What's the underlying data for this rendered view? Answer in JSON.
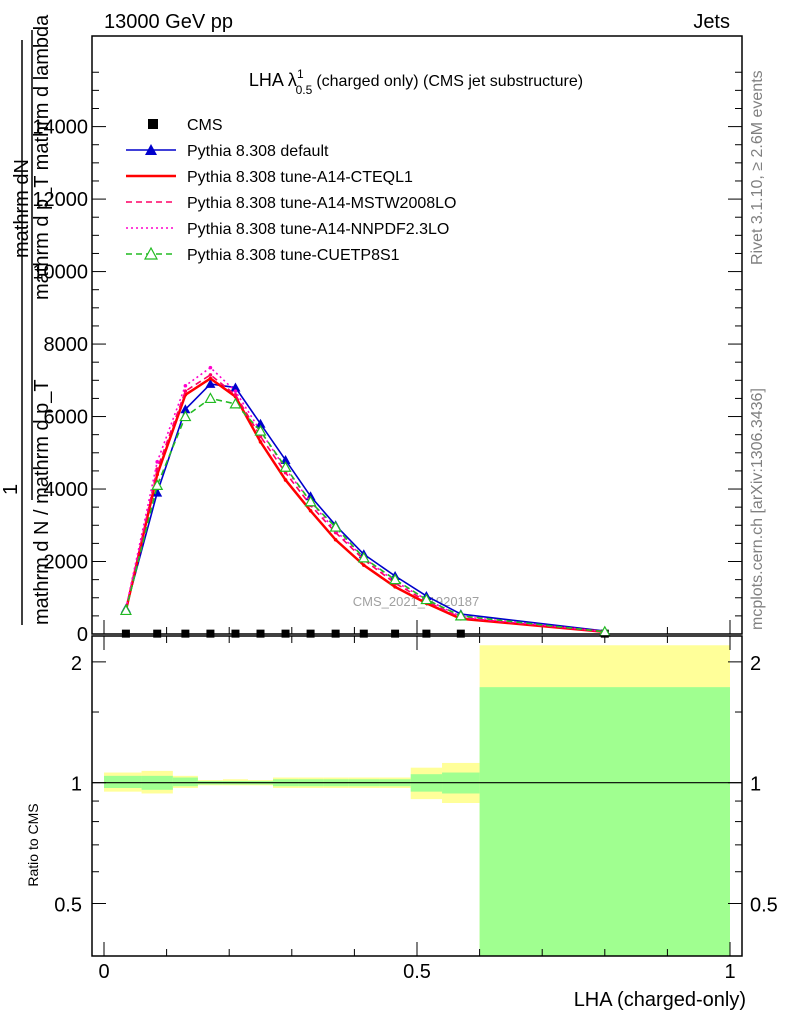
{
  "header": {
    "left": "13000 GeV pp",
    "right": "Jets"
  },
  "side_labels": {
    "rivet": "Rivet 3.1.10, ≥ 2.6M events",
    "mcplots": "mcplots.cern.ch [arXiv:1306.3436]"
  },
  "watermark": "CMS_2021_I1920187",
  "chart_data": [
    {
      "type": "line",
      "title": "LHA λ",
      "title_sup": "1",
      "title_sub": "0.5",
      "title_rest": "(charged only) (CMS jet substructure)",
      "xlabel": "",
      "ylabel_num": "mathrm dN",
      "ylabel_den": "mathrm d p_T mathrm d lambda",
      "ylabel_frac1": "1",
      "ylabel_frac1_den": "mathrm d N / mathrm d p_T",
      "xlim": [
        0,
        1
      ],
      "ylim": [
        0,
        16500
      ],
      "yticks": [
        0,
        2000,
        4000,
        6000,
        8000,
        10000,
        12000,
        14000
      ],
      "ytick_labels": [
        "0",
        "2000",
        "4000",
        "6000",
        "8000",
        "10000",
        "12000",
        "14000"
      ],
      "x": [
        0.035,
        0.085,
        0.13,
        0.17,
        0.21,
        0.25,
        0.29,
        0.33,
        0.37,
        0.415,
        0.465,
        0.515,
        0.57,
        0.8
      ],
      "legend": [
        "CMS",
        "Pythia 8.308 default",
        "Pythia 8.308 tune-A14-CTEQL1",
        "Pythia 8.308 tune-A14-MSTW2008LO",
        "Pythia 8.308 tune-A14-NNPDF2.3LO",
        "Pythia 8.308 tune-CUETP8S1"
      ],
      "series": [
        {
          "name": "CMS",
          "color": "#000000",
          "style": "points",
          "values": [
            10,
            10,
            10,
            10,
            10,
            10,
            10,
            10,
            10,
            10,
            10,
            10,
            10,
            10
          ]
        },
        {
          "name": "Pythia 8.308 default",
          "color": "#0000cc",
          "style": "solid",
          "marker": "triangle",
          "values": [
            700,
            3900,
            6200,
            6900,
            6800,
            5800,
            4800,
            3800,
            3000,
            2200,
            1600,
            1050,
            550,
            80
          ]
        },
        {
          "name": "Pythia 8.308 tune-A14-CTEQL1",
          "color": "#ff0000",
          "style": "solid-thick",
          "values": [
            650,
            4400,
            6600,
            7050,
            6550,
            5300,
            4250,
            3400,
            2600,
            1900,
            1300,
            850,
            420,
            60
          ]
        },
        {
          "name": "Pythia 8.308 tune-A14-MSTW2008LO",
          "color": "#ff0066",
          "style": "dashed",
          "values": [
            650,
            4550,
            6700,
            7150,
            6600,
            5450,
            4450,
            3550,
            2800,
            2050,
            1400,
            900,
            450,
            60
          ]
        },
        {
          "name": "Pythia 8.308 tune-A14-NNPDF2.3LO",
          "color": "#ff00cc",
          "style": "dotted",
          "values": [
            700,
            4750,
            6850,
            7350,
            6700,
            5600,
            4550,
            3650,
            2850,
            2100,
            1450,
            950,
            480,
            65
          ]
        },
        {
          "name": "Pythia 8.308 tune-CUETP8S1",
          "color": "#22bb22",
          "style": "dashed",
          "marker": "triangle-open",
          "values": [
            650,
            4100,
            6000,
            6500,
            6350,
            5600,
            4600,
            3650,
            2950,
            2100,
            1500,
            950,
            500,
            60
          ]
        }
      ]
    },
    {
      "type": "area",
      "xlabel": "LHA (charged-only)",
      "ylabel": "Ratio to CMS",
      "xlim": [
        0,
        1
      ],
      "ylim": [
        0.37,
        2.32
      ],
      "log_y": true,
      "yticks": [
        0.5,
        1,
        2
      ],
      "ytick_labels": [
        "0.5",
        "1",
        "2"
      ],
      "xticks": [
        0,
        0.5,
        1
      ],
      "xtick_labels": [
        "0",
        "0.5",
        "1"
      ],
      "bin_edges": [
        0,
        0.06,
        0.11,
        0.15,
        0.19,
        0.23,
        0.27,
        0.31,
        0.35,
        0.39,
        0.44,
        0.49,
        0.54,
        0.6,
        1.0
      ],
      "inner_band": {
        "color": "#a0ff90",
        "lo": [
          0.97,
          0.96,
          0.98,
          0.99,
          0.99,
          0.99,
          0.98,
          0.98,
          0.98,
          0.98,
          0.98,
          0.95,
          0.94,
          0.36
        ],
        "hi": [
          1.04,
          1.04,
          1.03,
          1.01,
          1.01,
          1.01,
          1.02,
          1.02,
          1.02,
          1.02,
          1.02,
          1.05,
          1.06,
          1.73
        ]
      },
      "outer_band": {
        "color": "#ffff99",
        "lo": [
          0.95,
          0.94,
          0.97,
          0.985,
          0.985,
          0.985,
          0.97,
          0.97,
          0.97,
          0.97,
          0.97,
          0.91,
          0.89,
          0.36
        ],
        "hi": [
          1.06,
          1.07,
          1.04,
          1.015,
          1.02,
          1.015,
          1.03,
          1.03,
          1.03,
          1.03,
          1.03,
          1.09,
          1.12,
          2.2
        ]
      }
    }
  ]
}
